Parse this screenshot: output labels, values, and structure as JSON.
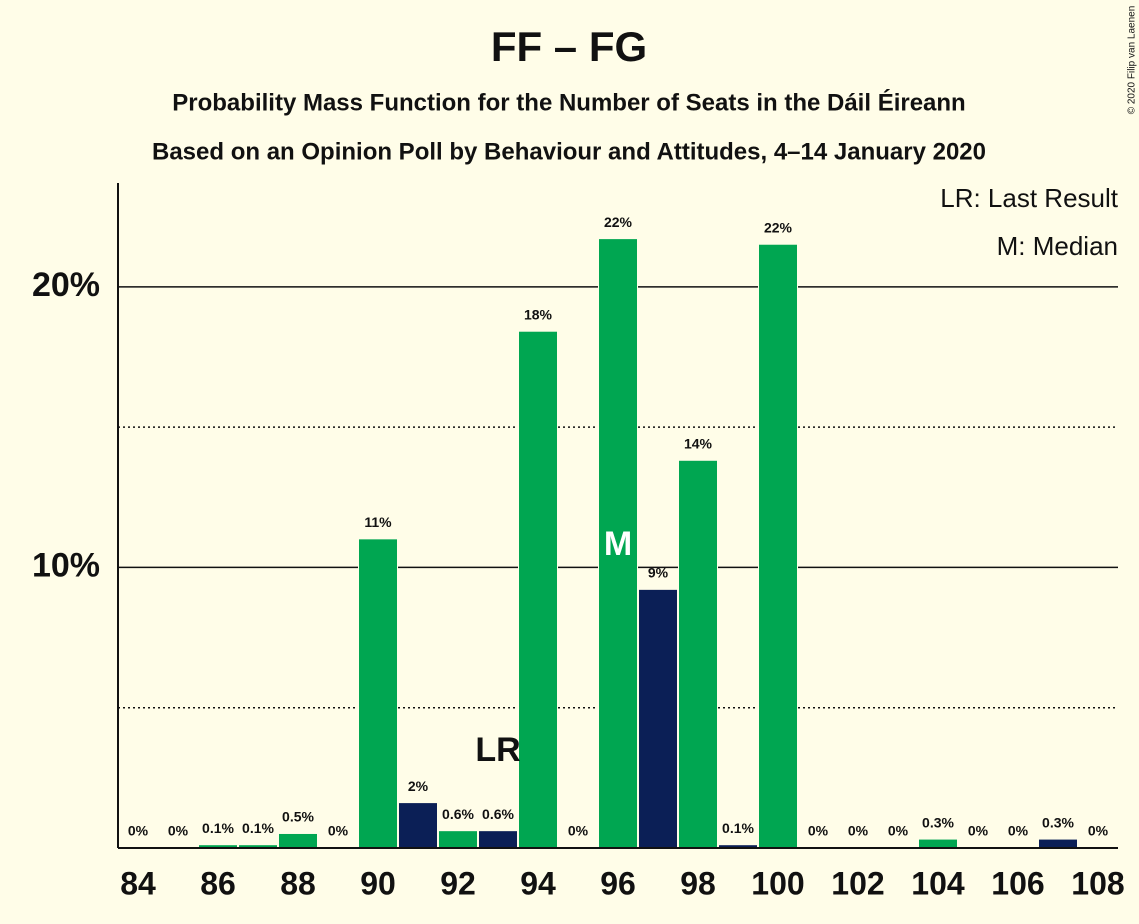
{
  "chart_data": {
    "type": "bar",
    "title": "FF – FG",
    "subtitle": "Probability Mass Function for the Number of Seats in the Dáil Éireann",
    "subtitle2": "Based on an Opinion Poll by Behaviour and Attitudes, 4–14 January 2020",
    "legend": [
      "LR: Last Result",
      "M: Median"
    ],
    "copyright": "© 2020 Filip van Laenen",
    "x": [
      84,
      85,
      86,
      87,
      88,
      89,
      90,
      91,
      92,
      93,
      94,
      95,
      96,
      97,
      98,
      99,
      100,
      101,
      102,
      103,
      104,
      105,
      106,
      107,
      108
    ],
    "values": [
      0,
      0,
      0.1,
      0.1,
      0.5,
      0,
      11,
      1.6,
      0.6,
      0.6,
      18.4,
      0,
      21.7,
      9.2,
      13.8,
      0.1,
      21.5,
      0,
      0,
      0,
      0.3,
      0,
      0,
      0.3,
      0
    ],
    "value_labels": [
      "0%",
      "0%",
      "0.1%",
      "0.1%",
      "0.5%",
      "0%",
      "11%",
      "2%",
      "0.6%",
      "0.6%",
      "18%",
      "0%",
      "22%",
      "9%",
      "14%",
      "0.1%",
      "22%",
      "0%",
      "0%",
      "0%",
      "0.3%",
      "0%",
      "0%",
      "0.3%",
      "0%"
    ],
    "colors": [
      "#00a651",
      "#00a651",
      "#00a651",
      "#00a651",
      "#00a651",
      "#00a651",
      "#00a651",
      "#0b1f56",
      "#00a651",
      "#0b1f56",
      "#00a651",
      "#00a651",
      "#00a651",
      "#0b1f56",
      "#00a651",
      "#0b1f56",
      "#00a651",
      "#00a651",
      "#00a651",
      "#00a651",
      "#00a651",
      "#00a651",
      "#00a651",
      "#0b1f56",
      "#00a651"
    ],
    "annotations": [
      {
        "label": "LR",
        "x": 93
      },
      {
        "label": "M",
        "x": 96
      }
    ],
    "xlim": [
      83.5,
      108.5
    ],
    "xticks": [
      84,
      86,
      88,
      90,
      92,
      94,
      96,
      98,
      100,
      102,
      104,
      106,
      108
    ],
    "ylim": [
      0,
      23.7
    ],
    "yticks": [
      {
        "value": 10,
        "label": "10%"
      },
      {
        "value": 20,
        "label": "20%"
      }
    ],
    "minor_yticks": [
      5,
      15
    ],
    "grid": true
  }
}
